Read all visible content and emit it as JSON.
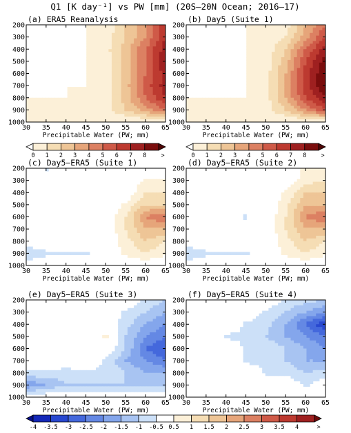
{
  "figure": {
    "title": "Q1 [K day⁻¹] vs PW [mm] (20S–20N Ocean; 2016–17)"
  },
  "shared_axes": {
    "xlabel": "Precipitable Water (PW; mm)",
    "xticks": [
      30,
      35,
      40,
      45,
      50,
      55,
      60,
      65
    ],
    "yticks": [
      200,
      300,
      400,
      500,
      600,
      700,
      800,
      900,
      1000
    ],
    "xlim": [
      30,
      65
    ],
    "ylim": [
      1000,
      200
    ],
    "ylabel": ""
  },
  "colorbars": [
    {
      "labels": [
        "0",
        "1",
        "2",
        "3",
        "4",
        "5",
        "6",
        "7",
        "8",
        ">"
      ],
      "colors": [
        "#ffffff",
        "#fcf0d8",
        "#f5ddb4",
        "#eec596",
        "#e6a57a",
        "#dc8062",
        "#cf5a48",
        "#bd3a30",
        "#9f2020",
        "#7a0d0d",
        "#4e0606"
      ]
    },
    {
      "labels": [
        "-4",
        "-3.5",
        "-3",
        "-2.5",
        "-2",
        "-1.5",
        "-1",
        "-0.5",
        "0.5",
        "1",
        "1.5",
        "2",
        "2.5",
        "3",
        "3.5",
        "4",
        ">"
      ],
      "colors": [
        "#08108a",
        "#1428b8",
        "#2848d0",
        "#4468dc",
        "#6488e4",
        "#84a6ec",
        "#a8c4f2",
        "#cce0f8",
        "#ffffff",
        "#fcf0d8",
        "#f5ddb4",
        "#eec596",
        "#e6a57a",
        "#dc8062",
        "#cf5a48",
        "#bd3a30",
        "#9f2020",
        "#6b0a0a"
      ]
    }
  ],
  "chart_data": [
    {
      "type": "heatmap",
      "title": "(a) ERA5 Reanalysis",
      "x": [
        30,
        35,
        40,
        45,
        50,
        55,
        60,
        65
      ],
      "y": [
        200,
        300,
        400,
        500,
        600,
        700,
        800,
        900,
        1000
      ],
      "values": [
        [
          0,
          0,
          0,
          0,
          0.2,
          2,
          4,
          7
        ],
        [
          0,
          0,
          0,
          0,
          0.5,
          2,
          4,
          7
        ],
        [
          0,
          0,
          0,
          0,
          0.6,
          2.5,
          5,
          7.5
        ],
        [
          0,
          0,
          0,
          0,
          0.5,
          2.5,
          5,
          8
        ],
        [
          0,
          0,
          0,
          0,
          0.4,
          2.5,
          5,
          7.5
        ],
        [
          0,
          0,
          0,
          0,
          0.4,
          2.5,
          5.5,
          7.5
        ],
        [
          0,
          0,
          0,
          0.1,
          0.5,
          2.5,
          5,
          7
        ],
        [
          0.6,
          0.4,
          0.4,
          0.5,
          0.6,
          2,
          3.5,
          5
        ],
        [
          0,
          0,
          0,
          0,
          0,
          0,
          0,
          0
        ]
      ]
    },
    {
      "type": "heatmap",
      "title": "(b) Day5 (Suite 1)",
      "x": [
        30,
        35,
        40,
        45,
        50,
        55,
        60,
        65
      ],
      "y": [
        200,
        300,
        400,
        500,
        600,
        700,
        800,
        900,
        1000
      ],
      "values": [
        [
          0,
          0,
          0,
          0,
          0,
          0.5,
          3,
          5
        ],
        [
          0,
          0,
          0,
          0,
          0.2,
          1,
          3.5,
          6
        ],
        [
          0,
          0,
          0,
          0,
          0.3,
          2,
          5,
          7.5
        ],
        [
          0,
          0,
          0,
          0,
          0.4,
          2.5,
          6,
          8.5
        ],
        [
          0,
          0,
          0,
          0,
          0.5,
          3,
          6.5,
          9
        ],
        [
          0,
          0,
          0,
          0,
          0.5,
          3,
          6.5,
          9
        ],
        [
          0,
          0,
          0,
          0,
          0.5,
          3,
          6,
          8
        ],
        [
          0.6,
          0.5,
          0.5,
          0.5,
          0.6,
          2,
          4,
          6
        ],
        [
          0,
          0,
          0,
          0,
          0,
          0,
          0,
          0
        ]
      ]
    },
    {
      "type": "heatmap",
      "title": "(c) Day5−ERA5 (Suite 1)",
      "x": [
        30,
        35,
        40,
        45,
        50,
        55,
        60,
        65
      ],
      "y": [
        200,
        300,
        400,
        500,
        600,
        700,
        800,
        900,
        1000
      ],
      "values": [
        [
          0,
          -0.6,
          0,
          0,
          0,
          0,
          0,
          0
        ],
        [
          0,
          0,
          0,
          0,
          0,
          0,
          0.6,
          0.6
        ],
        [
          0,
          0,
          0,
          0,
          0,
          0,
          1,
          1
        ],
        [
          0,
          0,
          0,
          0,
          0,
          0.6,
          1.5,
          1.5
        ],
        [
          0,
          0,
          0,
          0,
          0,
          1,
          2.5,
          3
        ],
        [
          0,
          0,
          0,
          0,
          0,
          1,
          2,
          2
        ],
        [
          0,
          0,
          0,
          0,
          0,
          0.8,
          1.5,
          1
        ],
        [
          -1,
          -0.6,
          -0.6,
          -0.6,
          0,
          0.6,
          1,
          0.6
        ],
        [
          0,
          0,
          0,
          0,
          0,
          0,
          0,
          0
        ]
      ]
    },
    {
      "type": "heatmap",
      "title": "(d) Day5−ERA5 (Suite 2)",
      "x": [
        30,
        35,
        40,
        45,
        50,
        55,
        60,
        65
      ],
      "y": [
        200,
        300,
        400,
        500,
        600,
        700,
        800,
        900,
        1000
      ],
      "values": [
        [
          0,
          0,
          0,
          0,
          0,
          0,
          0.6,
          0.6
        ],
        [
          0,
          0,
          0,
          0,
          0,
          0,
          0.8,
          1
        ],
        [
          0,
          0,
          0,
          0,
          0,
          0.6,
          1.5,
          1.5
        ],
        [
          0,
          0,
          0,
          0,
          0,
          0.8,
          2,
          2
        ],
        [
          0,
          0,
          0,
          -0.6,
          0,
          1,
          2.5,
          3
        ],
        [
          0,
          0,
          0,
          0,
          0,
          1,
          2,
          2
        ],
        [
          0,
          0,
          0,
          0,
          0,
          0.8,
          1.5,
          1
        ],
        [
          -1,
          -0.6,
          -0.6,
          -0.6,
          0,
          0.6,
          1,
          0.6
        ],
        [
          0,
          0,
          0,
          0,
          0,
          0,
          0,
          0
        ]
      ]
    },
    {
      "type": "heatmap",
      "title": "(e) Day5−ERA5 (Suite 3)",
      "x": [
        30,
        35,
        40,
        45,
        50,
        55,
        60,
        65
      ],
      "y": [
        200,
        300,
        400,
        500,
        600,
        700,
        800,
        900,
        1000
      ],
      "values": [
        [
          0,
          0,
          0,
          0,
          0,
          0,
          -0.6,
          -1
        ],
        [
          0,
          0,
          0,
          0,
          0,
          -0.6,
          -1,
          -1.5
        ],
        [
          0,
          0,
          0,
          0,
          0,
          -0.8,
          -1.5,
          -2
        ],
        [
          0,
          0,
          0,
          0,
          0.6,
          -1,
          -2,
          -2.5
        ],
        [
          0,
          0,
          0,
          0,
          0,
          -1,
          -2.5,
          -3
        ],
        [
          0,
          0,
          0,
          0,
          -0.6,
          -1.5,
          -2,
          -2.5
        ],
        [
          -0.6,
          -0.6,
          -0.8,
          -0.6,
          -0.6,
          -1,
          -1.5,
          -1.5
        ],
        [
          -2,
          -1.5,
          -1,
          -1,
          -1,
          -1,
          -1,
          -1
        ],
        [
          0,
          0,
          0,
          0,
          0,
          0,
          0,
          0
        ]
      ]
    },
    {
      "type": "heatmap",
      "title": "(f) Day5−ERA5 (Suite 4)",
      "x": [
        30,
        35,
        40,
        45,
        50,
        55,
        60,
        65
      ],
      "y": [
        200,
        300,
        400,
        500,
        600,
        700,
        800,
        900,
        1000
      ],
      "values": [
        [
          0,
          0,
          0,
          0,
          0,
          -0.6,
          -0.8,
          -1
        ],
        [
          0,
          0,
          0,
          0,
          -0.6,
          -1,
          -1.5,
          -2
        ],
        [
          0,
          0,
          0,
          -0.6,
          -0.8,
          -1.5,
          -2.5,
          -3.5
        ],
        [
          0,
          0,
          -0.6,
          -0.6,
          -1,
          -1.5,
          -2,
          -2.5
        ],
        [
          0,
          0,
          0,
          -0.6,
          -0.6,
          -1,
          -1.5,
          -2
        ],
        [
          0,
          0,
          0,
          -0.6,
          -0.6,
          -1,
          -1.5,
          -1.5
        ],
        [
          0,
          0,
          0,
          0,
          -0.6,
          -0.6,
          -1,
          -0.8
        ],
        [
          0,
          0,
          0,
          0,
          0,
          0,
          -0.6,
          0
        ],
        [
          0,
          0,
          0,
          0,
          0,
          0,
          0,
          0
        ]
      ]
    }
  ]
}
